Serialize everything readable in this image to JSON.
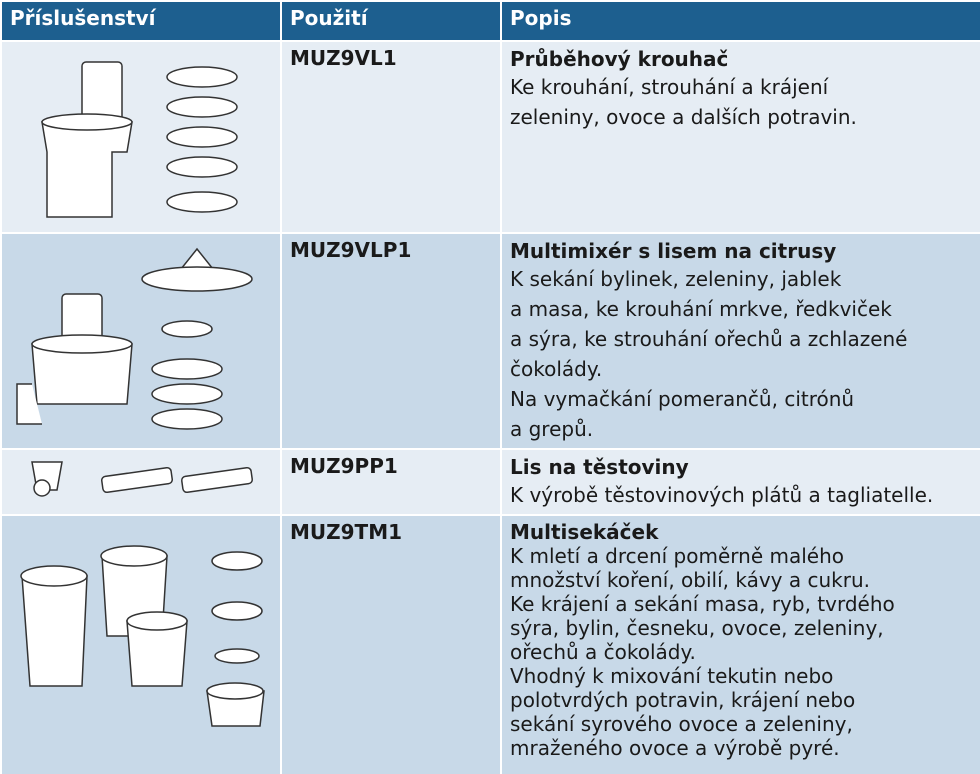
{
  "table": {
    "header": [
      "Příslušenství",
      "Použití",
      "Popis"
    ],
    "rows": [
      {
        "code": "MUZ9VL1",
        "title": "Průběhový krouhač",
        "lines": [
          "Ke krouhání, strouhání a krájení",
          "zeleniny, ovoce a dalších potravin."
        ]
      },
      {
        "code": "MUZ9VLP1",
        "title": "Multimixér s lisem na citrusy",
        "lines": [
          "K sekání bylinek, zeleniny, jablek",
          "a masa, ke krouhání mrkve, ředkviček",
          "a sýra, ke strouhání ořechů a zchlazené",
          "čokolády.",
          "Na vymačkání pomerančů, citrónů",
          "a grepů."
        ]
      },
      {
        "code": "MUZ9PP1",
        "title": "Lis na těstoviny",
        "lines": [
          "K výrobě těstovinových plátů a tagliatelle."
        ]
      },
      {
        "code": "MUZ9TM1",
        "title": "Multisekáček",
        "lines": [
          "K mletí a drcení poměrně malého",
          "množství koření, obilí, kávy a cukru.",
          "Ke krájení a sekání masa, ryb, tvrdého",
          "sýra, bylin, česneku, ovoce, zeleniny,",
          "ořechů a čokolády.",
          "Vhodný k mixování tekutin nebo",
          "polotvrdých potravin, krájení nebo",
          "sekání syrového ovoce a zeleniny,",
          "mraženého ovoce a výrobě pyré."
        ]
      }
    ]
  }
}
